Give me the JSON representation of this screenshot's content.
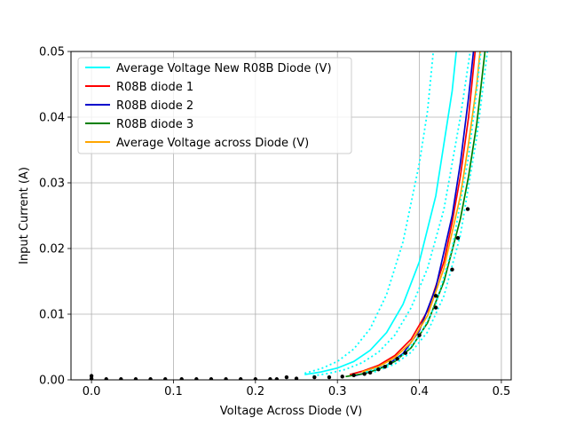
{
  "chart_data": {
    "type": "line",
    "xlabel": "Voltage Across Diode (V)",
    "ylabel": "Input Current (A)",
    "xlim": [
      -0.025,
      0.512
    ],
    "ylim": [
      0,
      0.05
    ],
    "x_ticks": [
      0.0,
      0.1,
      0.2,
      0.3,
      0.4,
      0.5
    ],
    "x_tick_labels": [
      "0.0",
      "0.1",
      "0.2",
      "0.3",
      "0.4",
      "0.5"
    ],
    "y_ticks": [
      0.0,
      0.01,
      0.02,
      0.03,
      0.04,
      0.05
    ],
    "y_tick_labels": [
      "0.00",
      "0.01",
      "0.02",
      "0.03",
      "0.04",
      "0.05"
    ],
    "grid": true,
    "legend_position": "top-left",
    "legend": [
      {
        "label": "Average Voltage New R08B Diode (V)",
        "color": "#00ffff"
      },
      {
        "label": "R08B diode 1",
        "color": "#ff0000"
      },
      {
        "label": "R08B diode 2",
        "color": "#0000cc"
      },
      {
        "label": "R08B diode 3",
        "color": "#008000"
      },
      {
        "label": "Average Voltage across Diode (V)",
        "color": "#ffa500"
      }
    ],
    "series": [
      {
        "name": "Average Voltage New R08B Diode (V)",
        "color": "#00ffff",
        "style": "solid",
        "points": [
          [
            0.26,
            0.0008
          ],
          [
            0.28,
            0.0012
          ],
          [
            0.3,
            0.0018
          ],
          [
            0.32,
            0.0028
          ],
          [
            0.34,
            0.0045
          ],
          [
            0.36,
            0.0072
          ],
          [
            0.38,
            0.0115
          ],
          [
            0.4,
            0.018
          ],
          [
            0.42,
            0.028
          ],
          [
            0.44,
            0.044
          ],
          [
            0.445,
            0.05
          ]
        ]
      },
      {
        "color": "#00ffff",
        "style": "dotted",
        "points": [
          [
            0.26,
            0.001
          ],
          [
            0.28,
            0.0017
          ],
          [
            0.3,
            0.0028
          ],
          [
            0.32,
            0.0047
          ],
          [
            0.34,
            0.0078
          ],
          [
            0.36,
            0.013
          ],
          [
            0.38,
            0.021
          ],
          [
            0.4,
            0.033
          ],
          [
            0.41,
            0.041
          ],
          [
            0.417,
            0.05
          ]
        ]
      },
      {
        "color": "#00ffff",
        "style": "dotted",
        "points": [
          [
            0.27,
            0.0006
          ],
          [
            0.29,
            0.001
          ],
          [
            0.31,
            0.0016
          ],
          [
            0.33,
            0.0026
          ],
          [
            0.35,
            0.0042
          ],
          [
            0.37,
            0.0068
          ],
          [
            0.39,
            0.011
          ],
          [
            0.41,
            0.017
          ],
          [
            0.43,
            0.026
          ],
          [
            0.45,
            0.04
          ],
          [
            0.462,
            0.05
          ]
        ]
      },
      {
        "name": "R08B diode 1",
        "color": "#ff0000",
        "style": "solid",
        "points": [
          [
            0.315,
            0.0008
          ],
          [
            0.33,
            0.0013
          ],
          [
            0.35,
            0.0022
          ],
          [
            0.37,
            0.0037
          ],
          [
            0.39,
            0.0062
          ],
          [
            0.41,
            0.0105
          ],
          [
            0.43,
            0.018
          ],
          [
            0.44,
            0.024
          ],
          [
            0.45,
            0.031
          ],
          [
            0.46,
            0.04
          ],
          [
            0.468,
            0.05
          ]
        ]
      },
      {
        "name": "R08B diode 2",
        "color": "#0000cc",
        "style": "solid",
        "points": [
          [
            0.32,
            0.0006
          ],
          [
            0.34,
            0.0012
          ],
          [
            0.36,
            0.0022
          ],
          [
            0.38,
            0.004
          ],
          [
            0.4,
            0.0075
          ],
          [
            0.42,
            0.014
          ],
          [
            0.44,
            0.025
          ],
          [
            0.45,
            0.033
          ],
          [
            0.46,
            0.043
          ],
          [
            0.466,
            0.05
          ]
        ]
      },
      {
        "name": "R08B diode 3",
        "color": "#008000",
        "style": "solid",
        "points": [
          [
            0.31,
            0.0005
          ],
          [
            0.33,
            0.0009
          ],
          [
            0.35,
            0.0016
          ],
          [
            0.37,
            0.0028
          ],
          [
            0.39,
            0.0049
          ],
          [
            0.41,
            0.0087
          ],
          [
            0.43,
            0.015
          ],
          [
            0.45,
            0.0245
          ],
          [
            0.46,
            0.031
          ],
          [
            0.47,
            0.039
          ],
          [
            0.48,
            0.05
          ]
        ]
      },
      {
        "name": "Average Voltage across Diode (V)",
        "color": "#ffa500",
        "style": "solid",
        "points": [
          [
            0.33,
            0.0012
          ],
          [
            0.35,
            0.002
          ],
          [
            0.37,
            0.0034
          ],
          [
            0.39,
            0.0057
          ],
          [
            0.41,
            0.0098
          ],
          [
            0.43,
            0.017
          ],
          [
            0.45,
            0.028
          ],
          [
            0.46,
            0.036
          ],
          [
            0.47,
            0.045
          ],
          [
            0.474,
            0.05
          ]
        ]
      },
      {
        "color": "#00ffff",
        "style": "dotted",
        "points": [
          [
            0.335,
            0.0012
          ],
          [
            0.36,
            0.0022
          ],
          [
            0.38,
            0.0038
          ],
          [
            0.4,
            0.0066
          ],
          [
            0.42,
            0.0115
          ],
          [
            0.44,
            0.02
          ],
          [
            0.46,
            0.034
          ],
          [
            0.47,
            0.044
          ],
          [
            0.475,
            0.05
          ]
        ]
      },
      {
        "color": "#00ffff",
        "style": "dotted",
        "points": [
          [
            0.345,
            0.0012
          ],
          [
            0.37,
            0.0024
          ],
          [
            0.39,
            0.0042
          ],
          [
            0.41,
            0.0073
          ],
          [
            0.43,
            0.0128
          ],
          [
            0.45,
            0.022
          ],
          [
            0.47,
            0.037
          ],
          [
            0.48,
            0.047
          ],
          [
            0.483,
            0.05
          ]
        ]
      }
    ],
    "markers": {
      "color": "#000000",
      "points": [
        [
          0.0,
          0.0006
        ],
        [
          0.0,
          0.0002
        ],
        [
          0.018,
          0.0001
        ],
        [
          0.036,
          0.0001
        ],
        [
          0.054,
          0.0001
        ],
        [
          0.072,
          0.0001
        ],
        [
          0.09,
          0.0001
        ],
        [
          0.11,
          0.0001
        ],
        [
          0.128,
          0.0001
        ],
        [
          0.146,
          0.0001
        ],
        [
          0.164,
          0.0001
        ],
        [
          0.182,
          0.0001
        ],
        [
          0.2,
          0.0001
        ],
        [
          0.218,
          0.0001
        ],
        [
          0.226,
          0.0001
        ],
        [
          0.238,
          0.0004
        ],
        [
          0.25,
          0.0002
        ],
        [
          0.272,
          0.0004
        ],
        [
          0.29,
          0.0004
        ],
        [
          0.306,
          0.0005
        ],
        [
          0.32,
          0.0007
        ],
        [
          0.333,
          0.0009
        ],
        [
          0.34,
          0.0011
        ],
        [
          0.35,
          0.0016
        ],
        [
          0.358,
          0.002
        ],
        [
          0.365,
          0.0026
        ],
        [
          0.373,
          0.0032
        ],
        [
          0.383,
          0.0041
        ],
        [
          0.4,
          0.0068
        ],
        [
          0.42,
          0.011
        ],
        [
          0.42,
          0.0128
        ],
        [
          0.44,
          0.0168
        ],
        [
          0.447,
          0.0216
        ],
        [
          0.459,
          0.026
        ]
      ]
    }
  }
}
